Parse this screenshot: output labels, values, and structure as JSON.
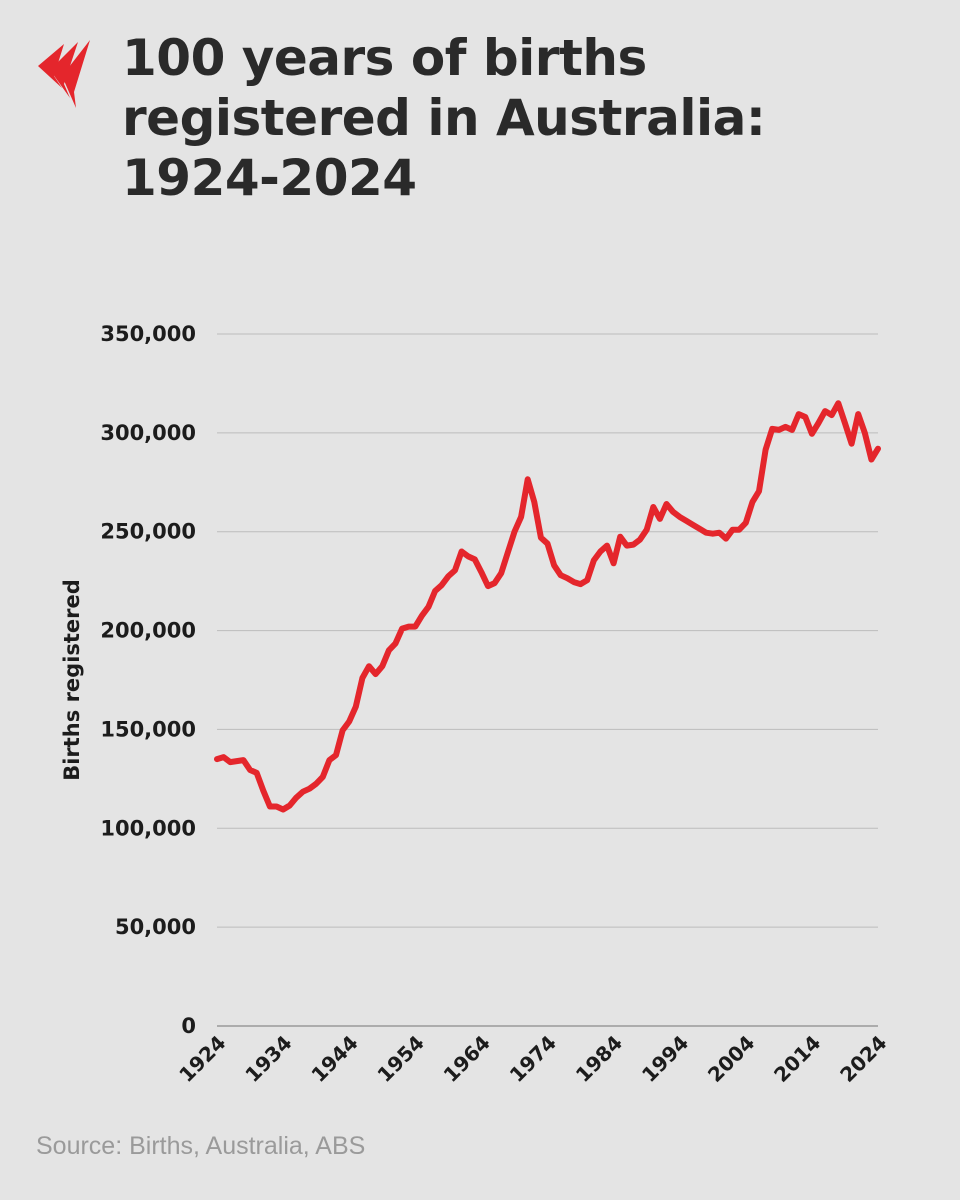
{
  "header": {
    "logo_icon": "broadcaster-logo-icon",
    "brand_color": "#e4262c",
    "title_lines": [
      "100 years of births",
      "registered in Australia:",
      "1924-2024"
    ]
  },
  "footer": {
    "source": "Source: Births, Australia, ABS"
  },
  "chart_data": {
    "type": "line",
    "title": "100 years of births registered in Australia: 1924-2024",
    "xlabel": "",
    "ylabel": "Births registered",
    "xlim": [
      1924,
      2024
    ],
    "ylim": [
      0,
      350000
    ],
    "grid": true,
    "legend": "none",
    "line_color": "#e4262c",
    "x_ticks": [
      1924,
      1934,
      1944,
      1954,
      1964,
      1974,
      1984,
      1994,
      2004,
      2014,
      2024
    ],
    "y_ticks": [
      0,
      50000,
      100000,
      150000,
      200000,
      250000,
      300000,
      350000
    ],
    "y_tick_labels": [
      "0",
      "50,000",
      "100,000",
      "150,000",
      "200,000",
      "250,000",
      "300,000",
      "350,000"
    ],
    "series": [
      {
        "x": [
          1924,
          1925,
          1926,
          1927,
          1928,
          1929,
          1930,
          1931,
          1932,
          1933,
          1934,
          1935,
          1936,
          1937,
          1938,
          1939,
          1940,
          1941,
          1942,
          1943,
          1944,
          1945,
          1946,
          1947,
          1948,
          1949,
          1950,
          1951,
          1952,
          1953,
          1954,
          1955,
          1956,
          1957,
          1958,
          1959,
          1960,
          1961,
          1962,
          1963,
          1964,
          1965,
          1966,
          1967,
          1968,
          1969,
          1970,
          1971,
          1972,
          1973,
          1974,
          1975,
          1976,
          1977,
          1978,
          1979,
          1980,
          1981,
          1982,
          1983,
          1984,
          1985,
          1986,
          1987,
          1988,
          1989,
          1990,
          1991,
          1992,
          1993,
          1994,
          1995,
          1996,
          1997,
          1998,
          1999,
          2000,
          2001,
          2002,
          2003,
          2004,
          2005,
          2006,
          2007,
          2008,
          2009,
          2010,
          2011,
          2012,
          2013,
          2014,
          2015,
          2016,
          2017,
          2018,
          2019,
          2020,
          2021,
          2022,
          2023,
          2024
        ],
        "values": [
          135000,
          136000,
          133500,
          134000,
          134500,
          129500,
          128000,
          119000,
          111000,
          111000,
          109500,
          111500,
          115500,
          118500,
          120000,
          122500,
          126000,
          134500,
          137000,
          149500,
          154000,
          161500,
          176000,
          182000,
          178000,
          182000,
          190000,
          193500,
          201000,
          202000,
          202000,
          207500,
          212000,
          220000,
          223000,
          227500,
          230500,
          240000,
          237500,
          236000,
          229500,
          222500,
          224000,
          229000,
          239500,
          250000,
          257500,
          276500,
          265000,
          247000,
          244000,
          233000,
          228000,
          226500,
          224500,
          223500,
          225500,
          235500,
          240000,
          243000,
          234000,
          247500,
          243000,
          243500,
          246000,
          251000,
          262500,
          256500,
          264000,
          260000,
          257500,
          255500,
          253500,
          251500,
          249500,
          249000,
          249500,
          246500,
          251000,
          251000,
          254500,
          265000,
          270500,
          291500,
          302000,
          301500,
          303000,
          301500,
          309500,
          308000,
          299500,
          305000,
          311000,
          309000,
          315000,
          305000,
          294500,
          309500,
          300000,
          286500,
          292000
        ]
      }
    ]
  }
}
